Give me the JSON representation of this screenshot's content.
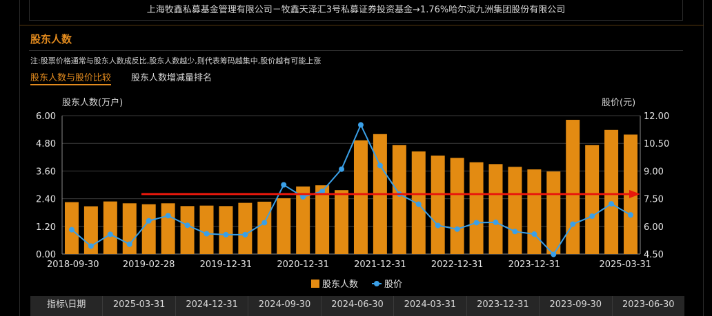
{
  "header": {
    "text": "上海牧鑫私募基金管理有限公司－牧鑫天泽汇3号私募证券投资基金→1.76%哈尔滨九洲集团股份有限公司"
  },
  "section": {
    "title": "股东人数",
    "note": "注:股票价格通常与股东人数成反比,股东人数越少,则代表筹码越集中,股价越有可能上涨",
    "tabs": [
      "股东人数与股价比较",
      "股东人数增减量排名"
    ]
  },
  "chart_data": {
    "type": "bar",
    "left_axis_title": "股东人数(万户)",
    "right_axis_title": "股价(元)",
    "left_ticks": [
      "6.00",
      "4.80",
      "3.60",
      "2.40",
      "1.20",
      "0.00"
    ],
    "right_ticks": [
      "12.00",
      "10.50",
      "9.00",
      "7.50",
      "6.00",
      "4.50"
    ],
    "ylim_left": [
      0,
      6
    ],
    "ylim_right": [
      4.5,
      12
    ],
    "x_tick_labels": [
      "2018-09-30",
      "2019-02-28",
      "2019-12-31",
      "2020-12-31",
      "2021-12-31",
      "2022-12-31",
      "2023-12-31",
      "2025-03-31"
    ],
    "x_tick_bar_index": [
      0,
      4,
      8,
      12,
      16,
      20,
      24,
      29
    ],
    "series": [
      {
        "name": "股东人数",
        "type": "bar",
        "color": "#e38b12",
        "values": [
          2.25,
          2.07,
          2.28,
          2.2,
          2.16,
          2.2,
          2.08,
          2.1,
          2.08,
          2.22,
          2.27,
          2.42,
          2.93,
          2.98,
          2.77,
          4.93,
          5.2,
          4.72,
          4.45,
          4.27,
          4.17,
          3.98,
          3.9,
          3.78,
          3.67,
          3.58,
          5.82,
          4.72,
          5.38,
          5.18
        ]
      },
      {
        "name": "股价",
        "type": "line",
        "color": "#3aa0e8",
        "values": [
          5.82,
          4.93,
          5.57,
          5.03,
          6.3,
          6.58,
          6.06,
          5.6,
          5.55,
          5.55,
          6.2,
          8.25,
          7.6,
          7.9,
          9.1,
          11.5,
          9.3,
          7.75,
          7.2,
          6.05,
          5.85,
          6.2,
          6.22,
          5.72,
          5.58,
          4.48,
          6.12,
          6.55,
          7.22,
          6.62
        ]
      }
    ],
    "reference_line": {
      "value_right": 7.75,
      "color": "#e8180c"
    },
    "grid": true,
    "legend_position": "bottom-center"
  },
  "table": {
    "headers": [
      "指标\\日期",
      "2025-03-31",
      "2024-12-31",
      "2024-09-30",
      "2024-06-30",
      "2024-03-31",
      "2023-12-31",
      "2023-09-30",
      "2023-06-30"
    ]
  }
}
